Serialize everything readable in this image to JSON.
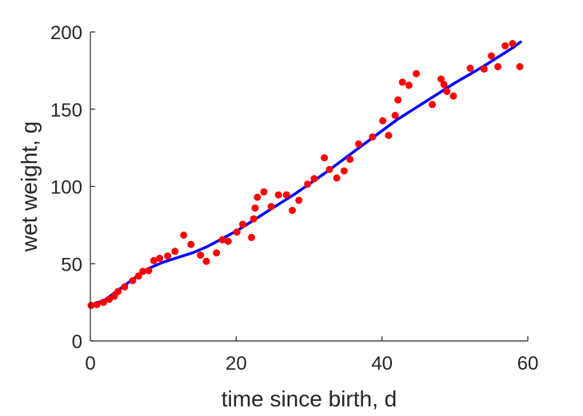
{
  "chart_data": {
    "type": "scatter",
    "xlabel": "time since birth, d",
    "ylabel": "wet weight, g",
    "xlim": [
      0,
      60
    ],
    "ylim": [
      0,
      200
    ],
    "xticks": [
      0,
      20,
      40,
      60
    ],
    "yticks": [
      0,
      50,
      100,
      150,
      200
    ],
    "grid": false,
    "colors": {
      "points": "#ff0000",
      "fit": "#0000ff",
      "axis": "#262626"
    },
    "series": [
      {
        "type": "scatter",
        "x": [
          0.1,
          0.9,
          1.8,
          2.6,
          3.3,
          3.8,
          4.7,
          5.8,
          6.6,
          7.2,
          8.0,
          8.7,
          9.5,
          10.6,
          11.6,
          12.8,
          13.8,
          15.1,
          15.9,
          17.3,
          18.1,
          18.9,
          20.1,
          20.9,
          22.1,
          22.4,
          22.6,
          22.9,
          23.8,
          24.8,
          25.8,
          26.9,
          27.7,
          28.6,
          29.8,
          30.7,
          32.1,
          32.8,
          33.8,
          34.8,
          35.6,
          36.8,
          38.7,
          40.1,
          40.9,
          41.8,
          42.2,
          42.8,
          43.7,
          44.7,
          46.9,
          48.1,
          48.5,
          48.9,
          49.8,
          52.1,
          54.0,
          55.0,
          55.9,
          56.9,
          57.9,
          58.9
        ],
        "y": [
          23,
          23.5,
          25,
          27,
          29,
          32,
          35,
          39,
          42,
          45,
          45.5,
          52,
          53.5,
          55,
          58,
          68.5,
          62.5,
          55.5,
          51.5,
          57,
          65.5,
          64.5,
          70.5,
          75.5,
          67,
          79,
          86,
          93,
          96.5,
          87,
          94.5,
          94.5,
          84.5,
          91,
          101.5,
          105,
          118.5,
          111,
          105.5,
          110,
          117.5,
          127.5,
          132,
          142.5,
          133,
          146,
          156,
          167.5,
          165.5,
          173,
          153,
          169.5,
          166,
          161.5,
          158.5,
          176.5,
          176,
          184.5,
          177.5,
          191,
          192.5,
          177.5
        ]
      },
      {
        "type": "line",
        "x": [
          0,
          2,
          4,
          6,
          8,
          10,
          12,
          14,
          16,
          18,
          20,
          22,
          24,
          26,
          28,
          30,
          32,
          34,
          36,
          38,
          40,
          42,
          44,
          46,
          48,
          50,
          52,
          54,
          56,
          58,
          59
        ],
        "y": [
          23,
          26.5,
          33.5,
          40.5,
          47,
          51,
          54,
          57,
          61,
          66,
          71,
          77,
          83,
          89,
          95,
          101.5,
          108,
          115,
          122,
          129,
          136,
          143,
          149,
          155,
          161,
          167,
          172.5,
          178,
          184,
          190,
          193.5
        ]
      }
    ]
  }
}
